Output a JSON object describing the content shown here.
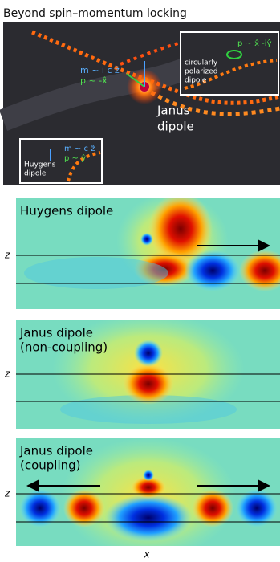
{
  "title": "Beyond spin–momentum locking",
  "top_image": {
    "janus_m": "m ~ i c ẑ",
    "janus_p": "p ~ -x̂",
    "janus_label": [
      "Janus",
      "dipole"
    ],
    "circular_p": "p ~ x̂ -iŷ",
    "circular_label": [
      "circularly",
      "polarized",
      "dipole"
    ],
    "huygens_m": "m ~ c ẑ",
    "huygens_p": "p ~ ŷ",
    "huygens_label": [
      "Huygens",
      "dipole"
    ]
  },
  "panels": [
    {
      "title": [
        "Huygens dipole"
      ],
      "z_label": "z"
    },
    {
      "title": [
        "Janus dipole",
        "(non-coupling)"
      ],
      "z_label": "z"
    },
    {
      "title": [
        "Janus dipole",
        "(coupling)"
      ],
      "z_label": "z"
    }
  ],
  "x_label": "x"
}
